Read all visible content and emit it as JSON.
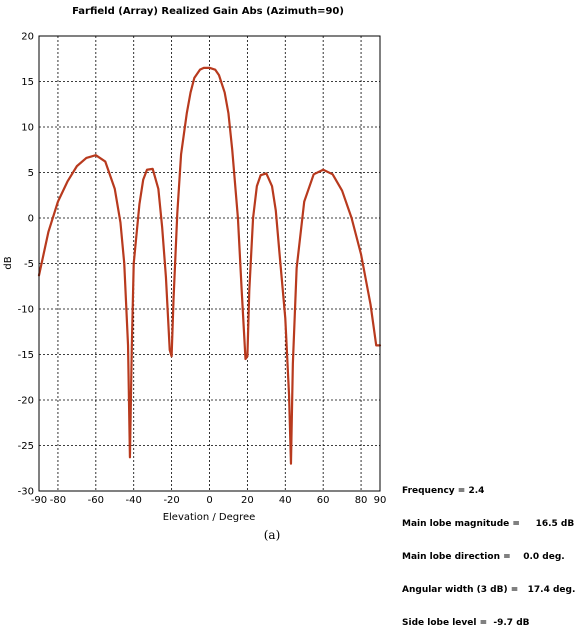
{
  "chart_data": {
    "type": "line",
    "title": "Farfield (Array) Realized Gain Abs (Azimuth=90)",
    "xlabel": "Elevation / Degree",
    "ylabel": "dB",
    "xlim": [
      -90,
      90
    ],
    "ylim": [
      -30,
      20
    ],
    "x_ticks": [
      "-90",
      "-80",
      "-60",
      "-40",
      "-20",
      "0",
      "20",
      "40",
      "60",
      "80",
      "90"
    ],
    "y_ticks": [
      "20",
      "15",
      "10",
      "5",
      "0",
      "-5",
      "-10",
      "-15",
      "-20",
      "-25",
      "-30"
    ],
    "grid": true,
    "series": [
      {
        "color": "#b83a1e",
        "x": [
          -90,
          -85,
          -80,
          -75,
          -70,
          -65,
          -60,
          -55,
          -50,
          -47,
          -45,
          -43,
          -42,
          -41,
          -40,
          -37,
          -35,
          -33,
          -30,
          -27,
          -25,
          -23,
          -21,
          -20,
          -19,
          -17,
          -15,
          -12,
          -10,
          -8,
          -5,
          -3,
          0,
          3,
          5,
          8,
          10,
          12,
          15,
          17,
          19,
          20,
          21,
          23,
          25,
          27,
          30,
          33,
          35,
          37,
          40,
          42,
          43,
          44,
          46,
          50,
          55,
          60,
          65,
          70,
          75,
          80,
          85,
          88,
          90
        ],
        "y": [
          -6.3,
          -1.5,
          1.8,
          4.0,
          5.7,
          6.6,
          6.9,
          6.2,
          3.2,
          -0.5,
          -5.0,
          -14.0,
          -26.3,
          -14.0,
          -5.0,
          1.5,
          4.2,
          5.3,
          5.4,
          3.2,
          -1.0,
          -6.5,
          -14.5,
          -15.2,
          -9.0,
          0.5,
          7.0,
          11.5,
          13.8,
          15.4,
          16.3,
          16.5,
          16.5,
          16.3,
          15.7,
          13.8,
          11.5,
          7.5,
          0.0,
          -8.0,
          -15.5,
          -15.2,
          -8.0,
          0.0,
          3.5,
          4.7,
          4.9,
          3.5,
          0.8,
          -4.0,
          -11.0,
          -19.5,
          -27.0,
          -16.0,
          -5.5,
          1.8,
          4.8,
          5.3,
          4.8,
          3.0,
          0.0,
          -4.0,
          -9.5,
          -14.0,
          -14.0
        ]
      }
    ]
  },
  "info": {
    "frequency": "Frequency = 2.4",
    "main_lobe_magnitude": "Main lobe magnitude =     16.5 dB",
    "main_lobe_direction": "Main lobe direction =    0.0 deg.",
    "angular_width": "Angular width (3 dB) =   17.4 deg.",
    "side_lobe_level": "Side lobe level =  -9.7 dB"
  },
  "caption": "(a)"
}
